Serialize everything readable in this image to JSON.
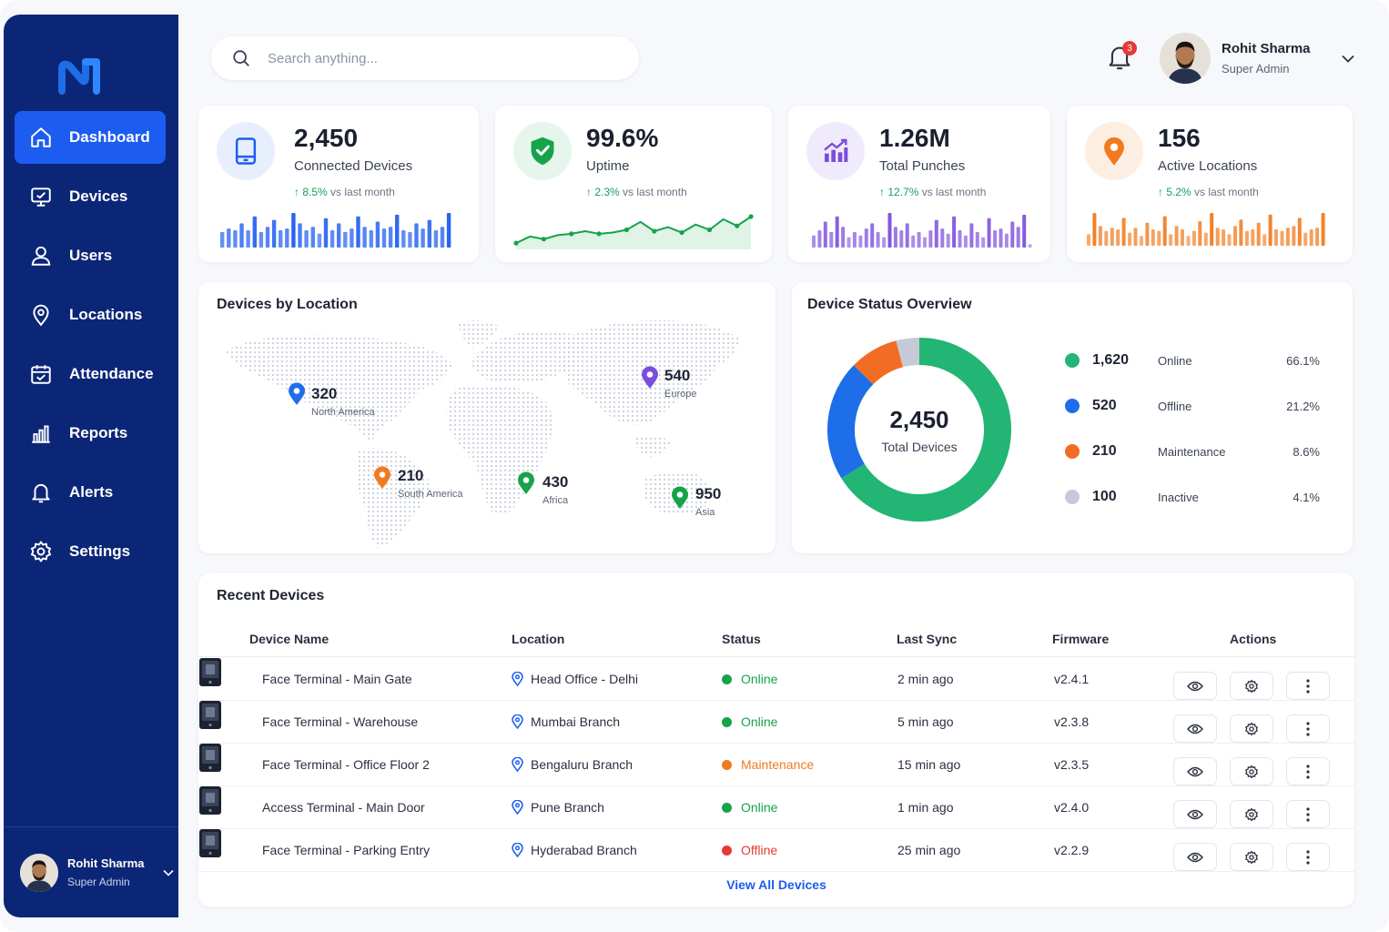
{
  "sidebar": {
    "items": [
      {
        "label": "Dashboard",
        "icon": "home-icon",
        "active": true
      },
      {
        "label": "Devices",
        "icon": "monitor-icon"
      },
      {
        "label": "Users",
        "icon": "user-icon"
      },
      {
        "label": "Locations",
        "icon": "location-pin-icon"
      },
      {
        "label": "Attendance",
        "icon": "calendar-icon"
      },
      {
        "label": "Reports",
        "icon": "bar-chart-icon"
      },
      {
        "label": "Alerts",
        "icon": "bell-icon"
      },
      {
        "label": "Settings",
        "icon": "gear-icon"
      }
    ],
    "user": {
      "name": "Rohit Sharma",
      "role": "Super Admin"
    }
  },
  "header": {
    "search_placeholder": "Search anything...",
    "notification_count": "3",
    "user": {
      "name": "Rohit Sharma",
      "role": "Super Admin"
    }
  },
  "kpis": [
    {
      "value": "2,450",
      "label": "Connected Devices",
      "trend": "8.5%",
      "trend_suffix": "vs last month",
      "color": "#1d5cf0",
      "icon": "tablet-icon",
      "spark": [
        0.45,
        0.55,
        0.5,
        0.7,
        0.5,
        0.9,
        0.45,
        0.6,
        0.8,
        0.5,
        0.55,
        1.0,
        0.7,
        0.5,
        0.6,
        0.4,
        0.85,
        0.5,
        0.7,
        0.45,
        0.55,
        0.9,
        0.6,
        0.5,
        0.75,
        0.55,
        0.6,
        0.95,
        0.5,
        0.45,
        0.7,
        0.55,
        0.8,
        0.5,
        0.6,
        1.0
      ]
    },
    {
      "value": "99.6%",
      "label": "Uptime",
      "trend": "2.3%",
      "trend_suffix": "vs last month",
      "color": "#16a34a",
      "icon": "shield-check-icon",
      "spark": [
        0.1,
        0.35,
        0.25,
        0.4,
        0.45,
        0.55,
        0.45,
        0.5,
        0.6,
        0.9,
        0.55,
        0.7,
        0.5,
        0.8,
        0.6,
        1.0,
        0.75,
        1.1
      ]
    },
    {
      "value": "1.26M",
      "label": "Total Punches",
      "trend": "12.7%",
      "trend_suffix": "vs last month",
      "color": "#7c4ddb",
      "icon": "chart-up-icon",
      "spark": [
        0.35,
        0.5,
        0.75,
        0.45,
        0.9,
        0.6,
        0.3,
        0.45,
        0.35,
        0.55,
        0.7,
        0.45,
        0.3,
        1.0,
        0.6,
        0.5,
        0.7,
        0.35,
        0.45,
        0.3,
        0.5,
        0.8,
        0.55,
        0.4,
        0.9,
        0.5,
        0.35,
        0.7,
        0.45,
        0.3,
        0.85,
        0.5,
        0.55,
        0.4,
        0.75,
        0.6,
        0.95,
        0.1
      ]
    },
    {
      "value": "156",
      "label": "Active Locations",
      "trend": "5.2%",
      "trend_suffix": "vs last month",
      "color": "#f07a1d",
      "icon": "map-pin-icon",
      "spark": [
        0.35,
        1.0,
        0.6,
        0.45,
        0.55,
        0.5,
        0.85,
        0.4,
        0.55,
        0.3,
        0.7,
        0.5,
        0.45,
        0.9,
        0.35,
        0.6,
        0.5,
        0.3,
        0.45,
        0.75,
        0.4,
        1.0,
        0.55,
        0.5,
        0.35,
        0.6,
        0.8,
        0.45,
        0.5,
        0.7,
        0.35,
        0.95,
        0.5,
        0.45,
        0.55,
        0.6,
        0.85,
        0.4,
        0.5,
        0.55,
        1.0
      ]
    }
  ],
  "map": {
    "title": "Devices by Location",
    "pins": [
      {
        "count": "320",
        "region": "North America",
        "color": "#1d6ee8"
      },
      {
        "count": "540",
        "region": "Europe",
        "color": "#7c4ddb"
      },
      {
        "count": "210",
        "region": "South America",
        "color": "#f07a1d"
      },
      {
        "count": "430",
        "region": "Africa",
        "color": "#16a34a"
      },
      {
        "count": "950",
        "region": "Asia",
        "color": "#16a34a"
      }
    ]
  },
  "status_overview": {
    "title": "Device Status Overview",
    "center_value": "2,450",
    "center_label": "Total Devices",
    "rows": [
      {
        "count": "1,620",
        "status": "Online",
        "pct": "66.1%",
        "color": "#22b573"
      },
      {
        "count": "520",
        "status": "Offline",
        "pct": "21.2%",
        "color": "#1d6ee8"
      },
      {
        "count": "210",
        "status": "Maintenance",
        "pct": "8.6%",
        "color": "#f36c24"
      },
      {
        "count": "100",
        "status": "Inactive",
        "pct": "4.1%",
        "color": "#c4cad6"
      }
    ]
  },
  "recent": {
    "title": "Recent Devices",
    "columns": [
      "Device Name",
      "Location",
      "Status",
      "Last Sync",
      "Firmware",
      "Actions"
    ],
    "rows": [
      {
        "name": "Face Terminal - Main Gate",
        "location": "Head Office - Delhi",
        "status": "Online",
        "status_color": "#16a34a",
        "sync": "2 min ago",
        "firmware": "v2.4.1"
      },
      {
        "name": "Face Terminal - Warehouse",
        "location": "Mumbai Branch",
        "status": "Online",
        "status_color": "#16a34a",
        "sync": "5 min ago",
        "firmware": "v2.3.8"
      },
      {
        "name": "Face Terminal - Office Floor 2",
        "location": "Bengaluru Branch",
        "status": "Maintenance",
        "status_color": "#f07a1d",
        "sync": "15 min ago",
        "firmware": "v2.3.5"
      },
      {
        "name": "Access Terminal - Main Door",
        "location": "Pune Branch",
        "status": "Online",
        "status_color": "#16a34a",
        "sync": "1 min ago",
        "firmware": "v2.4.0"
      },
      {
        "name": "Face Terminal - Parking Entry",
        "location": "Hyderabad Branch",
        "status": "Offline",
        "status_color": "#e53935",
        "sync": "25 min ago",
        "firmware": "v2.2.9"
      }
    ],
    "view_all": "View All Devices"
  }
}
